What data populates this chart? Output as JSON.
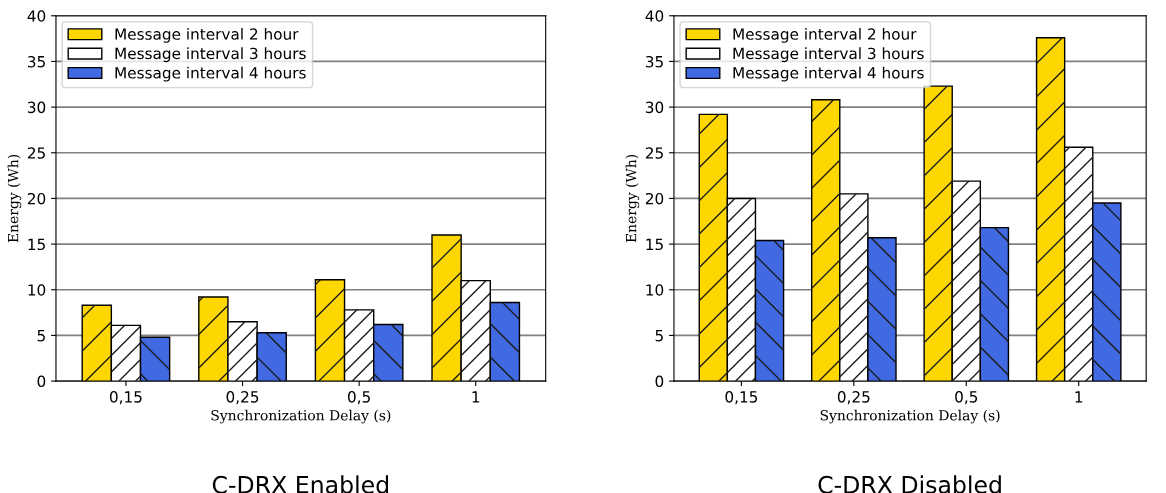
{
  "chart_data": [
    {
      "type": "bar",
      "title": "C-DRX Enabled",
      "xlabel": "Synchronization Delay (s)",
      "ylabel": "Energy (Wh)",
      "categories": [
        "0,15",
        "0,25",
        "0,5",
        "1"
      ],
      "series": [
        {
          "name": "Message interval 2 hour",
          "color": "#ffd700",
          "values": [
            8.3,
            9.2,
            11.1,
            16.0
          ]
        },
        {
          "name": "Message interval 3 hours",
          "color": "#ffffff",
          "values": [
            6.1,
            6.5,
            7.8,
            11.0
          ]
        },
        {
          "name": "Message interval 4 hours",
          "color": "#4169e1",
          "values": [
            4.8,
            5.3,
            6.2,
            8.6
          ]
        }
      ],
      "ylim": [
        0,
        40
      ],
      "yticks": [
        0,
        5,
        10,
        15,
        20,
        25,
        30,
        35,
        40
      ],
      "grid": "y",
      "legend": "top left"
    },
    {
      "type": "bar",
      "title": "C-DRX Disabled",
      "xlabel": "Synchronization Delay (s)",
      "ylabel": "Energy (Wh)",
      "categories": [
        "0,15",
        "0,25",
        "0,5",
        "1"
      ],
      "series": [
        {
          "name": "Message interval 2 hour",
          "color": "#ffd700",
          "values": [
            29.2,
            30.8,
            32.3,
            37.6
          ]
        },
        {
          "name": "Message interval 3 hours",
          "color": "#ffffff",
          "values": [
            20.0,
            20.5,
            21.9,
            25.6
          ]
        },
        {
          "name": "Message interval 4 hours",
          "color": "#4169e1",
          "values": [
            15.4,
            15.7,
            16.8,
            19.5
          ]
        }
      ],
      "ylim": [
        0,
        40
      ],
      "yticks": [
        0,
        5,
        10,
        15,
        20,
        25,
        30,
        35,
        40
      ],
      "grid": "y",
      "legend": "top left"
    }
  ]
}
